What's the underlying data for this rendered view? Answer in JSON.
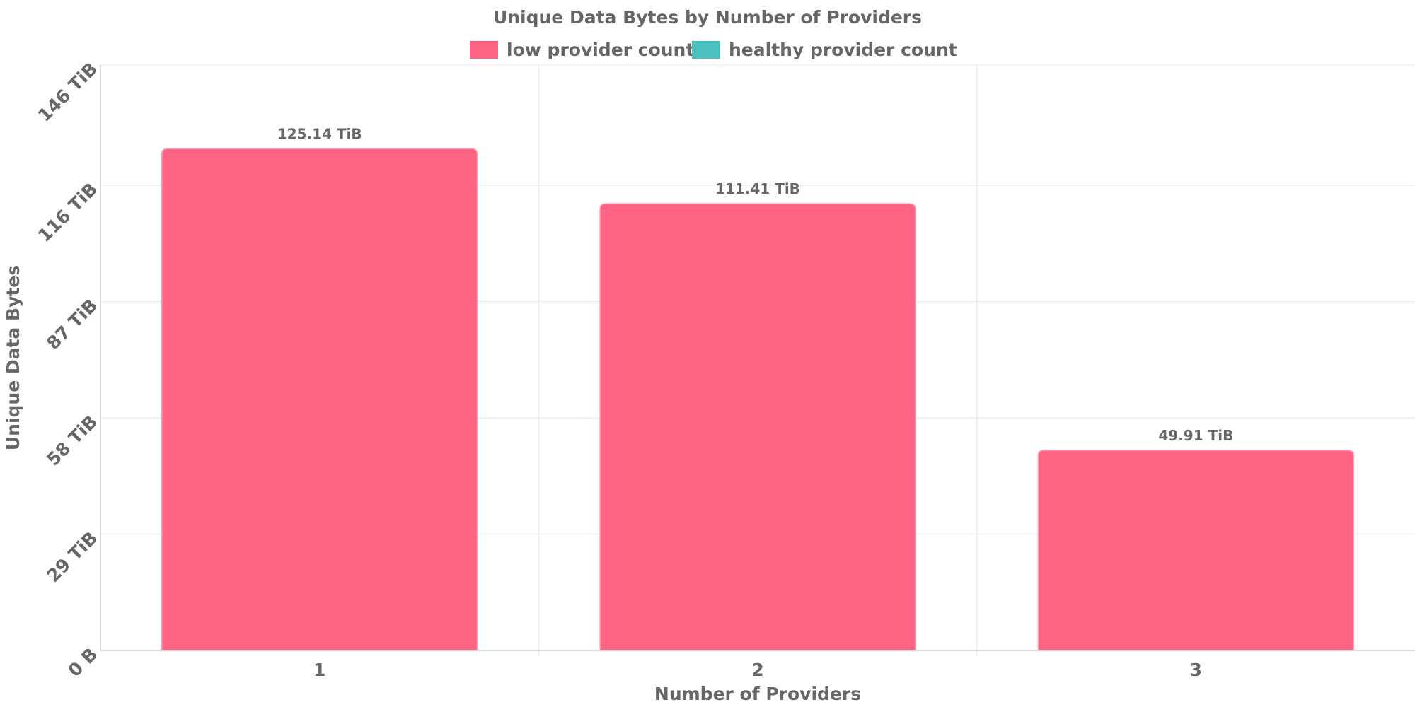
{
  "chart_data": {
    "type": "bar",
    "title": "Unique Data Bytes by Number of Providers",
    "xlabel": "Number of Providers",
    "ylabel": "Unique Data Bytes",
    "categories": [
      "1",
      "2",
      "3"
    ],
    "series": [
      {
        "name": "low provider count",
        "color": "#ff6384",
        "values": [
          125.14,
          111.41,
          49.91
        ],
        "value_labels": [
          "125.14 TiB",
          "111.41 TiB",
          "49.91 TiB"
        ]
      },
      {
        "name": "healthy provider count",
        "color": "#4bc0c0",
        "values": [
          0,
          0,
          0
        ]
      }
    ],
    "y_unit": "TiB",
    "ylim": [
      0,
      146
    ],
    "y_ticks": [
      0,
      29,
      58,
      87,
      116,
      146
    ],
    "y_tick_labels": [
      "0 B",
      "29 TiB",
      "58 TiB",
      "87 TiB",
      "116 TiB",
      "146 TiB"
    ],
    "grid": true,
    "legend_position": "top-center"
  }
}
